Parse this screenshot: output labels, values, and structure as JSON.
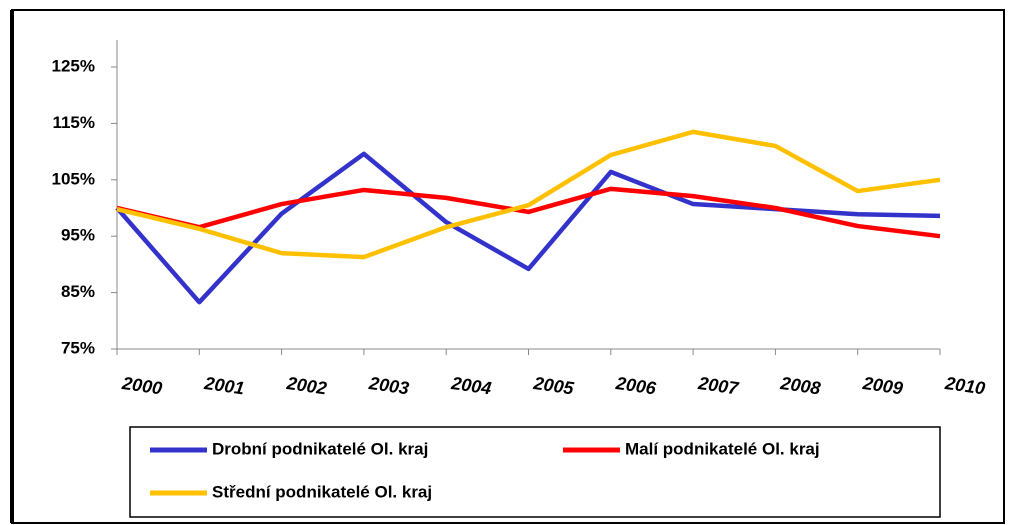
{
  "chart_data": {
    "type": "line",
    "x": [
      2000,
      2001,
      2002,
      2003,
      2004,
      2005,
      2006,
      2007,
      2008,
      2009,
      2010
    ],
    "series": [
      {
        "name": "Drobní podnikatelé Ol. kraj",
        "color": "#3333cc",
        "values": [
          100,
          83.3,
          99,
          109.6,
          97.5,
          89.2,
          106.4,
          100.7,
          99.8,
          98.9,
          98.6
        ]
      },
      {
        "name": "Malí podnikatelé Ol. kraj",
        "color": "#ff0000",
        "values": [
          100,
          96.6,
          100.7,
          103.2,
          101.8,
          99.3,
          103.4,
          102.1,
          100,
          96.8,
          95
        ]
      },
      {
        "name": "Střední podnikatelé Ol. kraj",
        "color": "#ffc000",
        "values": [
          99.8,
          96.3,
          92,
          91.3,
          96.6,
          100.5,
          109.4,
          113.5,
          111,
          103,
          105
        ]
      }
    ],
    "xlim": [
      2000,
      2010
    ],
    "xticks": [
      2000,
      2001,
      2002,
      2003,
      2004,
      2005,
      2006,
      2007,
      2008,
      2009,
      2010
    ],
    "ylim": [
      75,
      125
    ],
    "yticks": [
      {
        "value": 75,
        "label": "75%"
      },
      {
        "value": 85,
        "label": "85%"
      },
      {
        "value": 95,
        "label": "95%"
      },
      {
        "value": 105,
        "label": "105%"
      },
      {
        "value": 115,
        "label": "115%"
      },
      {
        "value": 125,
        "label": "125%"
      }
    ],
    "grid": false,
    "legend": "bottom"
  }
}
